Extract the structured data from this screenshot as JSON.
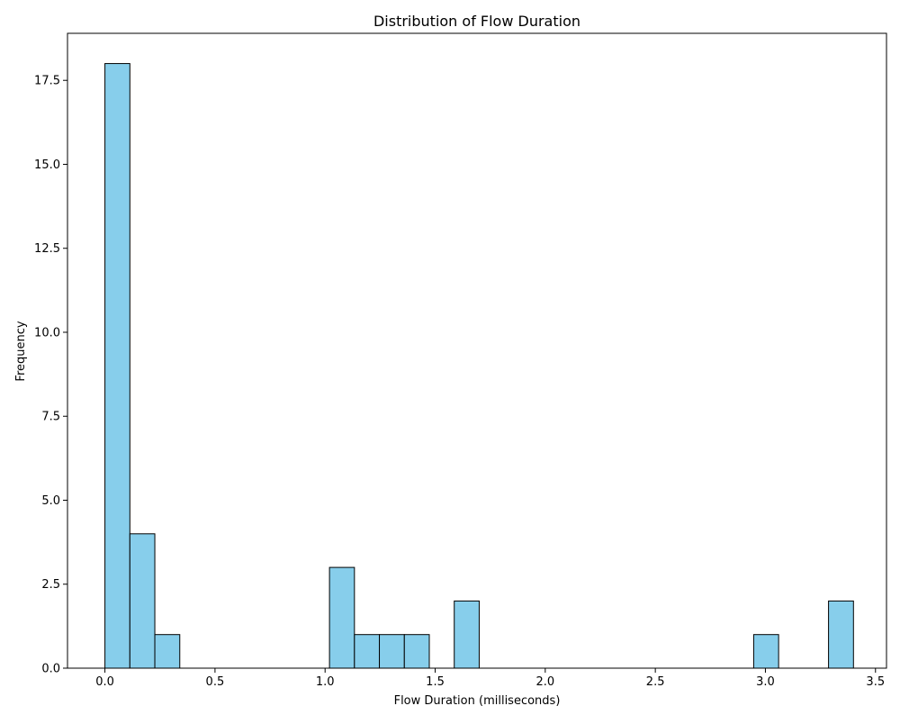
{
  "chart_data": {
    "type": "bar",
    "title": "Distribution of Flow Duration",
    "xlabel": "Flow Duration (milliseconds)",
    "ylabel": "Frequency",
    "xlim": [
      -0.17,
      3.55
    ],
    "ylim": [
      0,
      18.9
    ],
    "x_ticks": [
      0.0,
      0.5,
      1.0,
      1.5,
      2.0,
      2.5,
      3.0,
      3.5
    ],
    "x_tick_labels": [
      "0.0",
      "0.5",
      "1.0",
      "1.5",
      "2.0",
      "2.5",
      "3.0",
      "3.5"
    ],
    "y_ticks": [
      0.0,
      2.5,
      5.0,
      7.5,
      10.0,
      12.5,
      15.0,
      17.5
    ],
    "y_tick_labels": [
      "0.0",
      "2.5",
      "5.0",
      "7.5",
      "10.0",
      "12.5",
      "15.0",
      "17.5"
    ],
    "bin_start": 0.0,
    "bin_end": 3.4,
    "bin_count": 30,
    "counts": [
      18,
      4,
      1,
      0,
      0,
      0,
      0,
      0,
      0,
      3,
      1,
      1,
      1,
      0,
      2,
      0,
      0,
      0,
      0,
      0,
      0,
      0,
      0,
      0,
      0,
      0,
      1,
      0,
      0,
      2
    ],
    "grid": false,
    "bar_color": "#87ceeb",
    "edge_color": "#000000"
  }
}
